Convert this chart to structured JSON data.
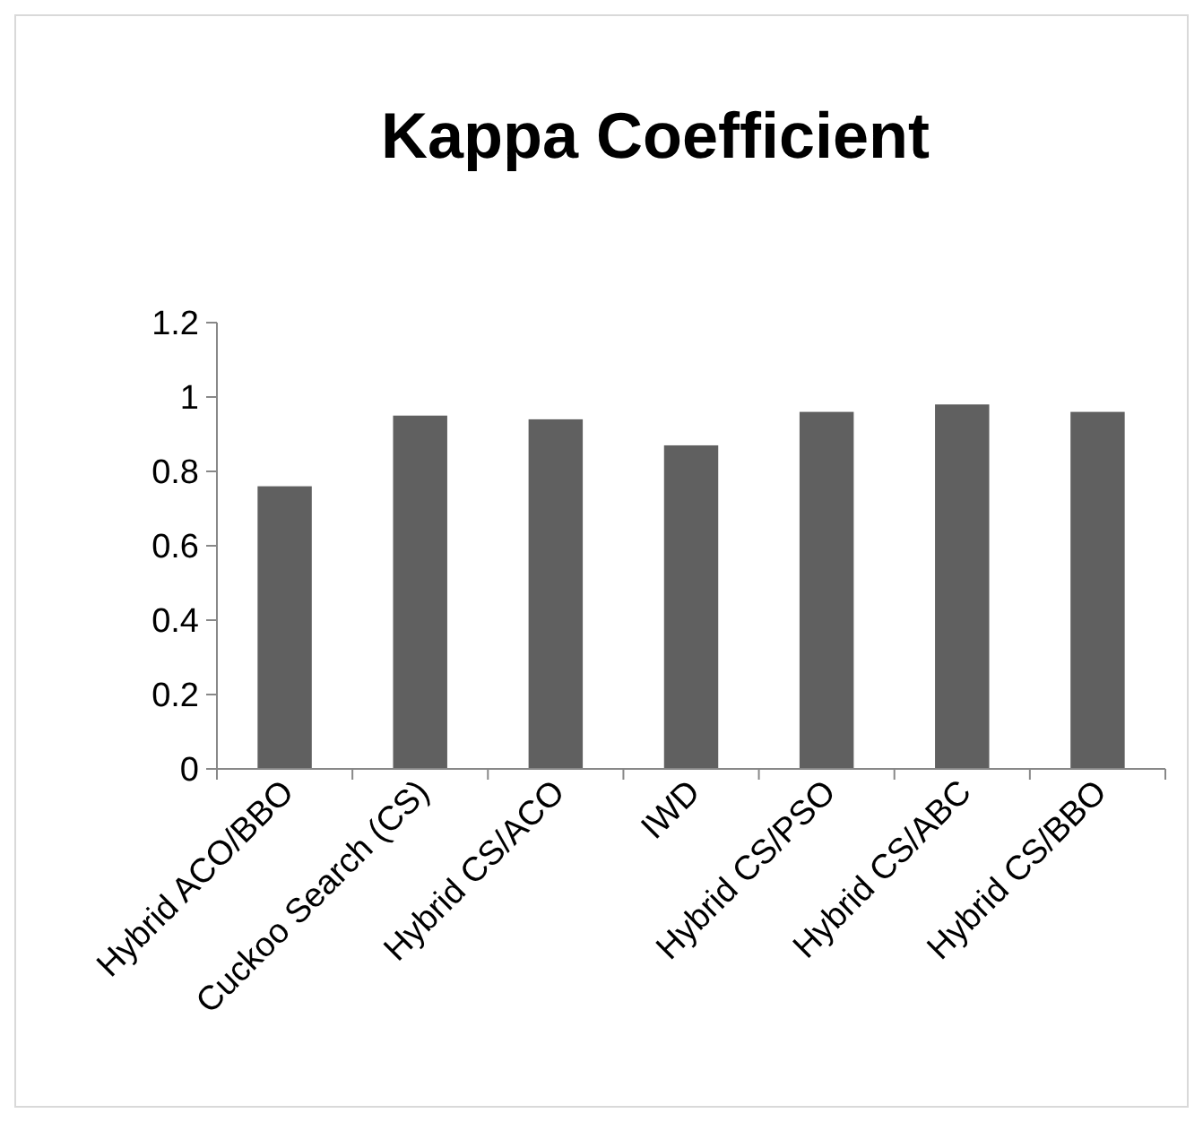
{
  "chart_data": {
    "type": "bar",
    "title": "Kappa Coefficient",
    "categories": [
      "Hybrid ACO/BBO",
      "Cuckoo Search (CS)",
      "Hybrid CS/ACO",
      "IWD",
      "Hybrid CS/PSO",
      "Hybrid CS/ABC",
      "Hybrid CS/BBO"
    ],
    "values": [
      0.76,
      0.95,
      0.94,
      0.87,
      0.96,
      0.98,
      0.96
    ],
    "color": "#606060",
    "ylim": [
      0,
      1.2
    ],
    "yticks": [
      0,
      0.2,
      0.4,
      0.6,
      0.8,
      1,
      1.2
    ],
    "grid": false
  }
}
